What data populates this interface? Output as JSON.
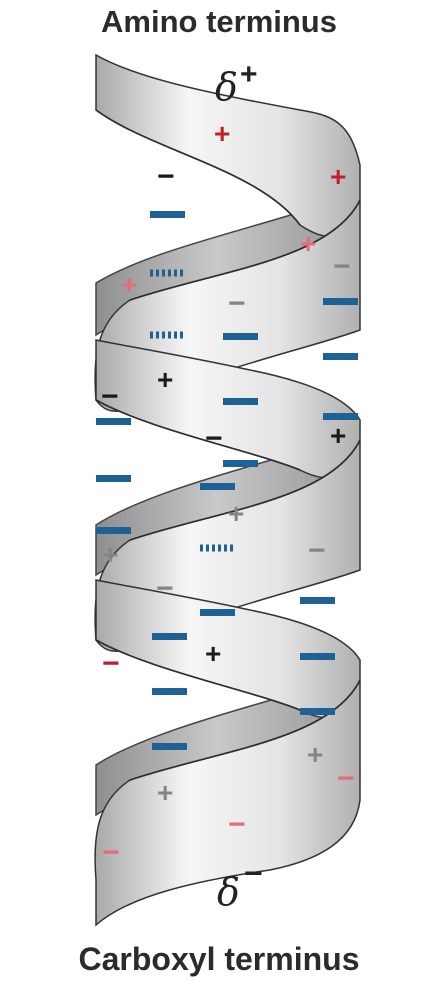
{
  "labels": {
    "top_title": "Amino terminus",
    "bottom_title": "Carboxyl terminus",
    "delta_top": "δ",
    "delta_top_sign": "+",
    "delta_bottom": "δ",
    "delta_bottom_sign": "−"
  },
  "colors": {
    "ribbon_light": "#f4f4f4",
    "ribbon_shade": "#b5b5b5",
    "outline": "#333333",
    "dipole_blue": "#1e6195",
    "positive_red": "#c0202e",
    "positive_pink": "#e36d7c",
    "neutral_black": "#1a1a1a",
    "neutral_gray": "#858585"
  }
}
